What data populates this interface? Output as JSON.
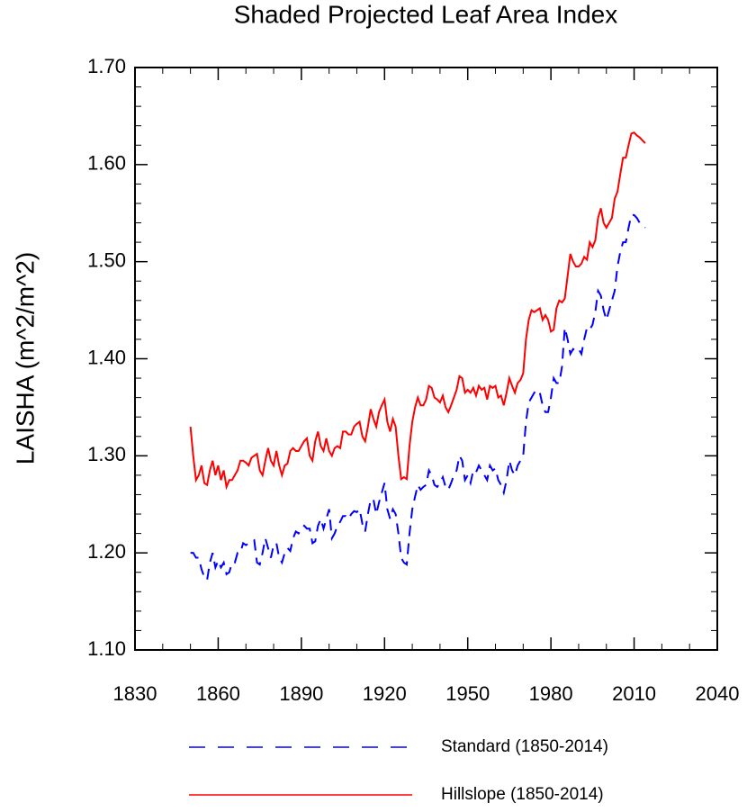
{
  "chart_data": {
    "type": "line",
    "title": "Shaded Projected Leaf Area Index",
    "ylabel": "LAISHA  (m^2/m^2)",
    "xlim": [
      1830,
      2040
    ],
    "xticks": [
      1830,
      1860,
      1890,
      1920,
      1950,
      1980,
      2010,
      2040
    ],
    "ylim": [
      1.1,
      1.7
    ],
    "yticks": [
      {
        "value": 1.1,
        "label": "1.10"
      },
      {
        "value": 1.2,
        "label": "1.20"
      },
      {
        "value": 1.3,
        "label": "1.30"
      },
      {
        "value": 1.4,
        "label": "1.40"
      },
      {
        "value": 1.5,
        "label": "1.50"
      },
      {
        "value": 1.6,
        "label": "1.60"
      },
      {
        "value": 1.7,
        "label": "1.70"
      }
    ],
    "x": [
      1850,
      1851,
      1852,
      1853,
      1854,
      1855,
      1856,
      1857,
      1858,
      1859,
      1860,
      1861,
      1862,
      1863,
      1864,
      1865,
      1866,
      1867,
      1868,
      1869,
      1870,
      1871,
      1872,
      1873,
      1874,
      1875,
      1876,
      1877,
      1878,
      1879,
      1880,
      1881,
      1882,
      1883,
      1884,
      1885,
      1886,
      1887,
      1888,
      1889,
      1890,
      1891,
      1892,
      1893,
      1894,
      1895,
      1896,
      1897,
      1898,
      1899,
      1900,
      1901,
      1902,
      1903,
      1904,
      1905,
      1906,
      1907,
      1908,
      1909,
      1910,
      1911,
      1912,
      1913,
      1914,
      1915,
      1916,
      1917,
      1918,
      1919,
      1920,
      1921,
      1922,
      1923,
      1924,
      1925,
      1926,
      1927,
      1928,
      1929,
      1930,
      1931,
      1932,
      1933,
      1934,
      1935,
      1936,
      1937,
      1938,
      1939,
      1940,
      1941,
      1942,
      1943,
      1944,
      1945,
      1946,
      1947,
      1948,
      1949,
      1950,
      1951,
      1952,
      1953,
      1954,
      1955,
      1956,
      1957,
      1958,
      1959,
      1960,
      1961,
      1962,
      1963,
      1964,
      1965,
      1966,
      1967,
      1968,
      1969,
      1970,
      1971,
      1972,
      1973,
      1974,
      1975,
      1976,
      1977,
      1978,
      1979,
      1980,
      1981,
      1982,
      1983,
      1984,
      1985,
      1986,
      1987,
      1988,
      1989,
      1990,
      1991,
      1992,
      1993,
      1994,
      1995,
      1996,
      1997,
      1998,
      1999,
      2000,
      2001,
      2002,
      2003,
      2004,
      2005,
      2006,
      2007,
      2008,
      2009,
      2010,
      2011,
      2012,
      2013,
      2014
    ],
    "series": [
      {
        "name": "Standard (1850-2014)",
        "color": "#0000ff",
        "dash": true,
        "values": [
          1.2,
          1.2,
          1.195,
          1.195,
          1.183,
          1.175,
          1.172,
          1.19,
          1.2,
          1.185,
          1.192,
          1.185,
          1.19,
          1.178,
          1.18,
          1.19,
          1.19,
          1.2,
          1.2,
          1.21,
          1.208,
          1.21,
          1.212,
          1.213,
          1.19,
          1.188,
          1.2,
          1.215,
          1.205,
          1.195,
          1.208,
          1.21,
          1.195,
          1.19,
          1.2,
          1.205,
          1.202,
          1.215,
          1.222,
          1.22,
          1.225,
          1.228,
          1.225,
          1.225,
          1.21,
          1.212,
          1.228,
          1.235,
          1.225,
          1.235,
          1.245,
          1.215,
          1.22,
          1.228,
          1.232,
          1.238,
          1.238,
          1.235,
          1.24,
          1.243,
          1.242,
          1.245,
          1.23,
          1.222,
          1.24,
          1.255,
          1.255,
          1.24,
          1.252,
          1.262,
          1.272,
          1.245,
          1.235,
          1.245,
          1.24,
          1.22,
          1.195,
          1.19,
          1.188,
          1.22,
          1.245,
          1.258,
          1.27,
          1.265,
          1.268,
          1.27,
          1.285,
          1.28,
          1.27,
          1.268,
          1.272,
          1.278,
          1.268,
          1.265,
          1.272,
          1.28,
          1.285,
          1.3,
          1.295,
          1.275,
          1.28,
          1.272,
          1.285,
          1.283,
          1.29,
          1.285,
          1.28,
          1.275,
          1.29,
          1.285,
          1.287,
          1.275,
          1.27,
          1.262,
          1.275,
          1.295,
          1.285,
          1.28,
          1.29,
          1.295,
          1.3,
          1.335,
          1.355,
          1.36,
          1.365,
          1.368,
          1.365,
          1.352,
          1.345,
          1.345,
          1.36,
          1.38,
          1.375,
          1.375,
          1.392,
          1.432,
          1.42,
          1.405,
          1.41,
          1.408,
          1.41,
          1.405,
          1.42,
          1.432,
          1.43,
          1.435,
          1.448,
          1.47,
          1.465,
          1.45,
          1.44,
          1.45,
          1.46,
          1.47,
          1.495,
          1.51,
          1.52,
          1.52,
          1.535,
          1.548,
          1.548,
          1.545,
          1.54,
          1.538,
          1.535
        ]
      },
      {
        "name": "Hillslope (1850-2014)",
        "color": "#ff0000",
        "dash": false,
        "values": [
          1.33,
          1.3,
          1.275,
          1.28,
          1.29,
          1.272,
          1.27,
          1.285,
          1.295,
          1.28,
          1.29,
          1.275,
          1.285,
          1.268,
          1.275,
          1.275,
          1.28,
          1.285,
          1.295,
          1.295,
          1.293,
          1.29,
          1.298,
          1.3,
          1.302,
          1.285,
          1.28,
          1.295,
          1.308,
          1.295,
          1.29,
          1.305,
          1.29,
          1.28,
          1.29,
          1.292,
          1.305,
          1.308,
          1.305,
          1.305,
          1.31,
          1.315,
          1.318,
          1.3,
          1.295,
          1.315,
          1.325,
          1.31,
          1.305,
          1.318,
          1.305,
          1.3,
          1.308,
          1.31,
          1.308,
          1.325,
          1.325,
          1.322,
          1.322,
          1.33,
          1.333,
          1.335,
          1.32,
          1.315,
          1.33,
          1.348,
          1.338,
          1.33,
          1.345,
          1.352,
          1.358,
          1.335,
          1.325,
          1.338,
          1.33,
          1.3,
          1.276,
          1.278,
          1.276,
          1.31,
          1.335,
          1.35,
          1.36,
          1.352,
          1.352,
          1.358,
          1.372,
          1.37,
          1.36,
          1.358,
          1.355,
          1.362,
          1.35,
          1.345,
          1.352,
          1.36,
          1.368,
          1.382,
          1.38,
          1.365,
          1.368,
          1.365,
          1.37,
          1.362,
          1.372,
          1.368,
          1.37,
          1.358,
          1.372,
          1.37,
          1.372,
          1.36,
          1.362,
          1.352,
          1.365,
          1.38,
          1.372,
          1.365,
          1.375,
          1.378,
          1.385,
          1.42,
          1.44,
          1.45,
          1.448,
          1.45,
          1.452,
          1.44,
          1.445,
          1.44,
          1.428,
          1.43,
          1.452,
          1.46,
          1.458,
          1.462,
          1.485,
          1.508,
          1.5,
          1.495,
          1.495,
          1.498,
          1.505,
          1.502,
          1.52,
          1.515,
          1.522,
          1.545,
          1.555,
          1.54,
          1.535,
          1.54,
          1.545,
          1.565,
          1.572,
          1.59,
          1.607,
          1.607,
          1.62,
          1.632,
          1.633,
          1.63,
          1.628,
          1.625,
          1.622
        ]
      }
    ]
  }
}
